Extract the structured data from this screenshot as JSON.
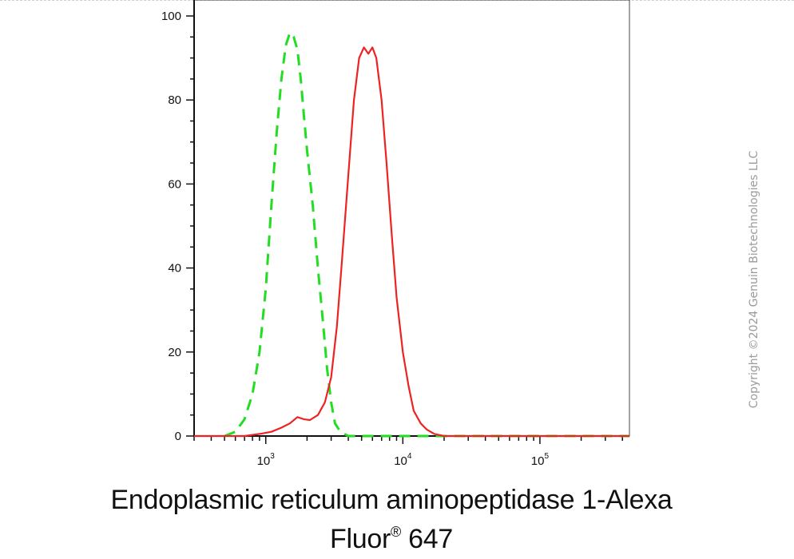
{
  "chart_data": {
    "type": "line",
    "xscale": "log",
    "xlim": [
      300,
      450000
    ],
    "ylim": [
      0,
      100
    ],
    "yticks": [
      0,
      20,
      40,
      60,
      80,
      100
    ],
    "xticks": [
      {
        "value": 1000,
        "base": "10",
        "exp": "3"
      },
      {
        "value": 10000,
        "base": "10",
        "exp": "4"
      },
      {
        "value": 100000,
        "base": "10",
        "exp": "5"
      }
    ],
    "xlabel_line1": "Endoplasmic reticulum aminopeptidase 1-Alexa",
    "xlabel_line2_prefix": "Fluor",
    "xlabel_sup": "®",
    "xlabel_line2_suffix": " 647",
    "series": [
      {
        "style": "dashed",
        "color": "#22dd22",
        "x": [
          500,
          600,
          700,
          800,
          900,
          1000,
          1100,
          1200,
          1300,
          1400,
          1500,
          1600,
          1700,
          1800,
          1900,
          2000,
          2200,
          2400,
          2600,
          2800,
          3000,
          3200,
          3500,
          4000,
          5000,
          8000,
          20000,
          100000,
          450000
        ],
        "y": [
          0,
          1,
          4,
          10,
          20,
          35,
          55,
          72,
          85,
          93,
          96,
          95,
          92,
          85,
          76,
          68,
          55,
          40,
          28,
          16,
          8,
          3,
          1,
          0,
          0,
          0,
          0,
          0,
          0
        ]
      },
      {
        "style": "solid",
        "color": "#ee2222",
        "x": [
          300,
          700,
          900,
          1100,
          1300,
          1500,
          1700,
          1900,
          2100,
          2400,
          2700,
          3000,
          3300,
          3600,
          4000,
          4400,
          4800,
          5200,
          5600,
          6000,
          6400,
          7000,
          7600,
          8300,
          9000,
          10000,
          11000,
          12000,
          13500,
          15000,
          17000,
          20000,
          30000,
          100000,
          450000
        ],
        "y": [
          0,
          0,
          0.5,
          1,
          2,
          3,
          4.5,
          4,
          3.8,
          5,
          8,
          14,
          26,
          42,
          62,
          80,
          90,
          92.5,
          91,
          92.5,
          90,
          80,
          65,
          48,
          33,
          20,
          12,
          6,
          3,
          1.5,
          0.5,
          0,
          0,
          0,
          0
        ]
      }
    ]
  },
  "copyright": "Copyright ©2024 Genuin Biotechnologies LLC"
}
